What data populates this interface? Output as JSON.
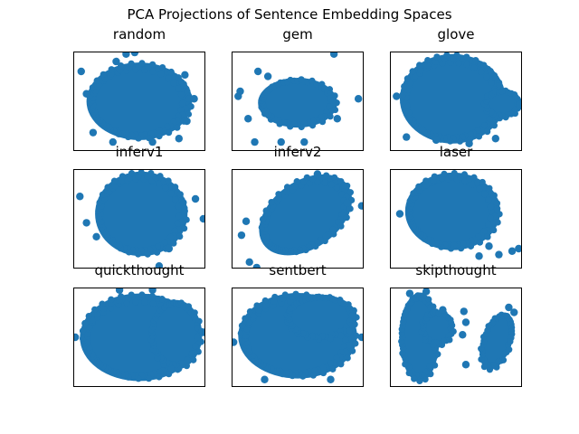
{
  "title": "PCA Projections of Sentence Embedding Spaces",
  "colors": {
    "point": "#1f77b4",
    "frame": "#000000",
    "background": "#ffffff"
  },
  "chart_data": [
    {
      "type": "scatter",
      "title": "random",
      "xticks": false,
      "yticks": false,
      "xlim": [
        -1.0,
        1.0
      ],
      "ylim": [
        -1.0,
        1.0
      ],
      "regions": [
        {
          "shape": "ellipse",
          "cx": 0.0,
          "cy": 0.0,
          "rx": 0.8,
          "ry": 0.78
        }
      ],
      "points": [
        [
          -0.88,
          0.6
        ],
        [
          -0.2,
          0.95
        ],
        [
          -0.07,
          0.98
        ],
        [
          -0.7,
          -0.63
        ],
        [
          0.69,
          0.53
        ],
        [
          0.83,
          0.05
        ],
        [
          0.72,
          -0.4
        ],
        [
          0.6,
          -0.75
        ],
        [
          0.2,
          -0.82
        ],
        [
          -0.4,
          -0.82
        ],
        [
          -0.35,
          0.8
        ],
        [
          -0.8,
          0.15
        ]
      ]
    },
    {
      "type": "scatter",
      "title": "gem",
      "xticks": false,
      "yticks": false,
      "xlim": [
        -1.0,
        1.0
      ],
      "ylim": [
        -1.0,
        1.0
      ],
      "regions": [
        {
          "shape": "ellipse",
          "cx": 0.0,
          "cy": -0.03,
          "rx": 0.6,
          "ry": 0.5
        }
      ],
      "points": [
        [
          -0.6,
          0.6
        ],
        [
          -0.45,
          0.5
        ],
        [
          0.55,
          0.95
        ],
        [
          0.92,
          0.05
        ],
        [
          -0.87,
          0.2
        ],
        [
          -0.75,
          -0.35
        ],
        [
          -0.65,
          -0.82
        ],
        [
          -0.25,
          -0.82
        ],
        [
          0.1,
          -0.82
        ],
        [
          0.6,
          -0.35
        ],
        [
          -0.9,
          0.1
        ]
      ]
    },
    {
      "type": "scatter",
      "title": "glove",
      "xticks": false,
      "yticks": false,
      "xlim": [
        -1.0,
        1.0
      ],
      "ylim": [
        -1.0,
        1.0
      ],
      "regions": [
        {
          "shape": "ellipse",
          "cx": -0.05,
          "cy": 0.05,
          "rx": 0.8,
          "ry": 0.9
        },
        {
          "shape": "ellipse",
          "cx": 0.7,
          "cy": -0.05,
          "rx": 0.28,
          "ry": 0.28
        }
      ],
      "points": [
        [
          -0.75,
          -0.72
        ],
        [
          -0.3,
          -0.78
        ],
        [
          0.2,
          -0.85
        ],
        [
          0.6,
          -0.75
        ],
        [
          0.97,
          -0.07
        ],
        [
          -0.9,
          0.1
        ]
      ]
    },
    {
      "type": "scatter",
      "title": "inferv1",
      "xticks": false,
      "yticks": false,
      "xlim": [
        -1.0,
        1.0
      ],
      "ylim": [
        -1.0,
        1.0
      ],
      "regions": [
        {
          "shape": "ellipse",
          "cx": 0.03,
          "cy": 0.1,
          "rx": 0.7,
          "ry": 0.85
        }
      ],
      "points": [
        [
          -0.9,
          0.45
        ],
        [
          -0.8,
          -0.08
        ],
        [
          -0.65,
          -0.36
        ],
        [
          0.97,
          0.0
        ],
        [
          0.3,
          -0.95
        ],
        [
          0.45,
          -0.6
        ],
        [
          0.85,
          0.4
        ]
      ]
    },
    {
      "type": "scatter",
      "title": "inferv2",
      "xticks": false,
      "yticks": false,
      "xlim": [
        -1.0,
        1.0
      ],
      "ylim": [
        -1.0,
        1.0
      ],
      "regions": [
        {
          "shape": "ellipse",
          "cx": 0.12,
          "cy": 0.08,
          "rx": 0.78,
          "ry": 0.68,
          "angle": 35
        }
      ],
      "points": [
        [
          -0.78,
          -0.05
        ],
        [
          -0.85,
          -0.33
        ],
        [
          -0.73,
          -0.87
        ],
        [
          -0.62,
          -0.98
        ],
        [
          0.97,
          0.26
        ],
        [
          0.75,
          0.32
        ],
        [
          0.3,
          0.9
        ]
      ]
    },
    {
      "type": "scatter",
      "title": "laser",
      "xticks": false,
      "yticks": false,
      "xlim": [
        -1.0,
        1.0
      ],
      "ylim": [
        -1.0,
        1.0
      ],
      "regions": [
        {
          "shape": "ellipse",
          "cx": -0.05,
          "cy": 0.15,
          "rx": 0.72,
          "ry": 0.78
        }
      ],
      "points": [
        [
          0.85,
          -0.65
        ],
        [
          0.95,
          -0.6
        ],
        [
          0.65,
          -0.72
        ],
        [
          0.35,
          -0.75
        ],
        [
          0.5,
          -0.55
        ],
        [
          -0.85,
          0.1
        ]
      ]
    },
    {
      "type": "scatter",
      "title": "quickthought",
      "xticks": false,
      "yticks": false,
      "xlim": [
        -1.0,
        1.0
      ],
      "ylim": [
        -1.0,
        1.0
      ],
      "regions": [
        {
          "shape": "ellipse",
          "cx": 0.0,
          "cy": 0.0,
          "rx": 0.9,
          "ry": 0.88
        },
        {
          "shape": "ellipse",
          "cx": 0.55,
          "cy": 0.05,
          "rx": 0.4,
          "ry": 0.7
        }
      ],
      "points": [
        [
          -0.97,
          0.0
        ],
        [
          0.97,
          0.1
        ],
        [
          -0.3,
          0.95
        ],
        [
          0.2,
          0.95
        ]
      ]
    },
    {
      "type": "scatter",
      "title": "sentbert",
      "xticks": false,
      "yticks": false,
      "xlim": [
        -1.0,
        1.0
      ],
      "ylim": [
        -1.0,
        1.0
      ],
      "regions": [
        {
          "shape": "ellipse",
          "cx": 0.0,
          "cy": 0.03,
          "rx": 0.9,
          "ry": 0.86
        },
        {
          "shape": "ellipse",
          "cx": 0.35,
          "cy": 0.4,
          "rx": 0.55,
          "ry": 0.45
        }
      ],
      "points": [
        [
          -0.97,
          -0.1
        ],
        [
          0.97,
          0.0
        ],
        [
          0.5,
          -0.85
        ],
        [
          -0.5,
          -0.85
        ]
      ]
    },
    {
      "type": "scatter",
      "title": "skipthought",
      "xticks": false,
      "yticks": false,
      "xlim": [
        -1.0,
        1.0
      ],
      "ylim": [
        -1.0,
        1.0
      ],
      "regions": [
        {
          "shape": "ellipse",
          "cx": -0.55,
          "cy": 0.0,
          "rx": 0.3,
          "ry": 0.9
        },
        {
          "shape": "ellipse",
          "cx": -0.28,
          "cy": 0.18,
          "rx": 0.25,
          "ry": 0.35
        },
        {
          "shape": "ellipse",
          "cx": 0.62,
          "cy": -0.08,
          "rx": 0.22,
          "ry": 0.6,
          "angle": -18
        }
      ],
      "points": [
        [
          0.15,
          0.3
        ],
        [
          0.1,
          0.05
        ],
        [
          0.15,
          -0.55
        ],
        [
          0.12,
          0.52
        ],
        [
          0.8,
          0.6
        ],
        [
          0.88,
          0.5
        ],
        [
          -0.45,
          0.92
        ],
        [
          -0.7,
          0.88
        ],
        [
          -0.2,
          0.55
        ]
      ]
    }
  ]
}
